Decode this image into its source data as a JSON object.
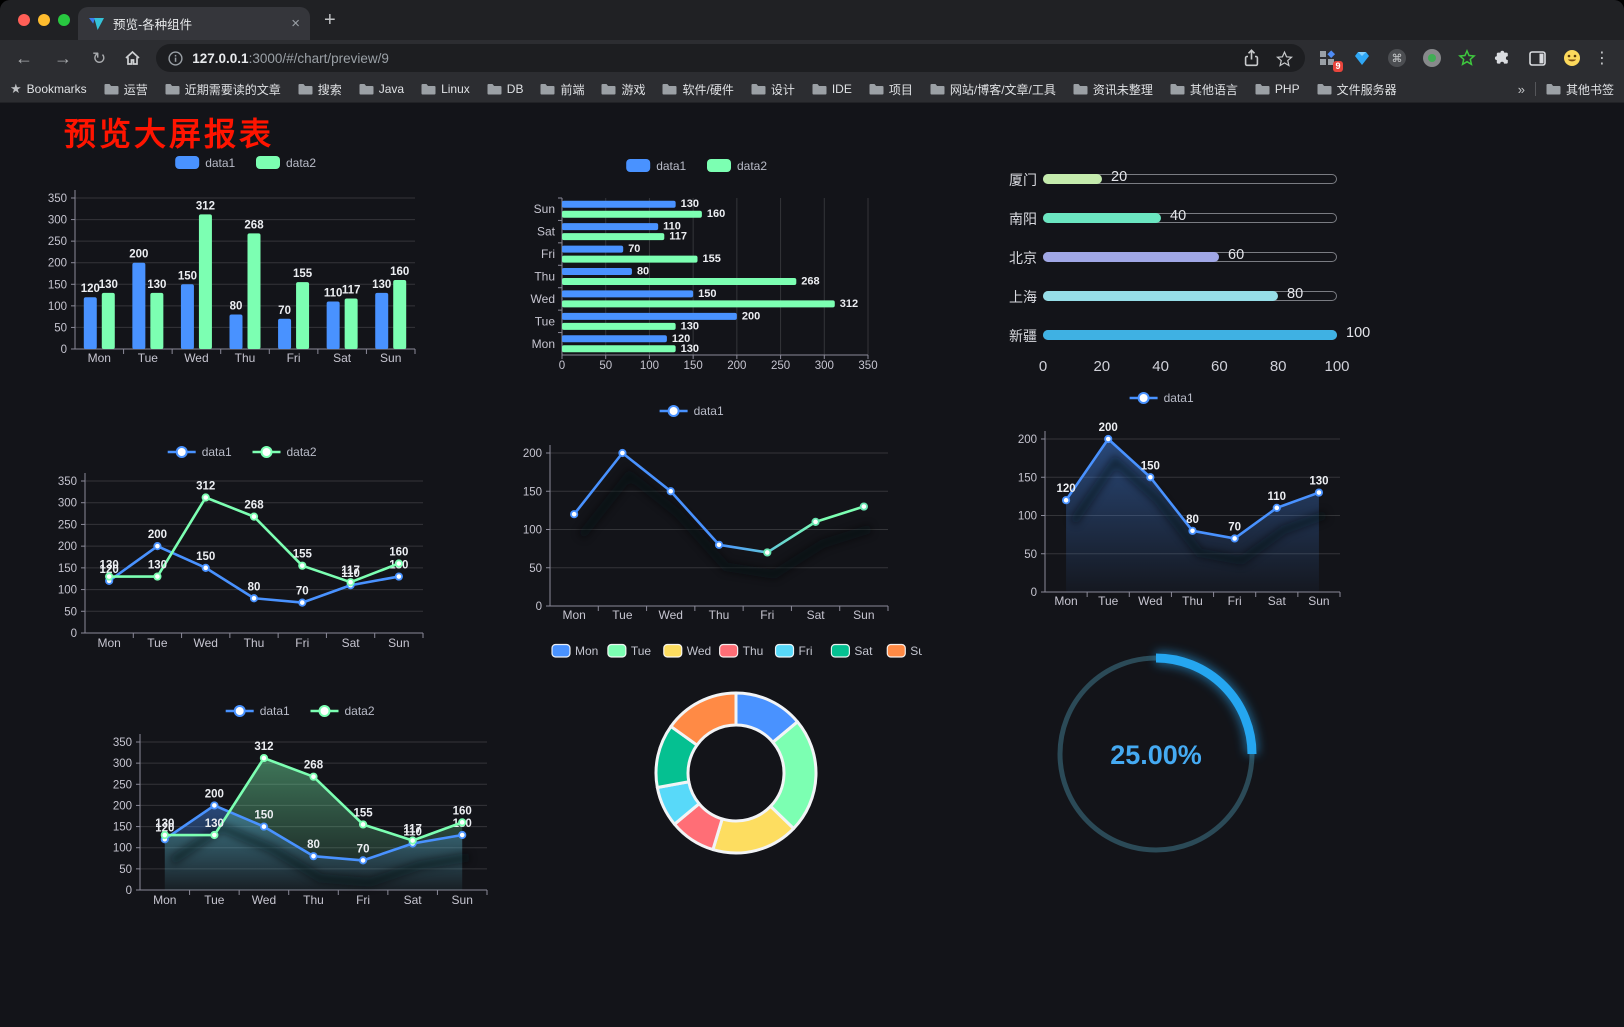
{
  "browser": {
    "tab": {
      "title": "预览-各种组件",
      "close_glyph": "×",
      "new_tab_glyph": "+"
    },
    "toolbar": {
      "url_host": "127.0.0.1",
      "url_rest": ":3000/#/chart/preview/9",
      "extension_badge": "9"
    },
    "bookmarks_bar": {
      "bookmarks_label": "Bookmarks",
      "folders": [
        "运营",
        "近期需要读的文章",
        "搜索",
        "Java",
        "Linux",
        "DB",
        "前端",
        "游戏",
        "软件/硬件",
        "设计",
        "IDE",
        "项目",
        "网站/博客/文章/工具",
        "资讯未整理",
        "其他语言",
        "PHP",
        "文件服务器"
      ],
      "overflow_chevron": "»",
      "other_bookmarks": "其他书签"
    }
  },
  "page": {
    "title": "预览大屏报表",
    "title_color": "#ff1400"
  },
  "chart_data": [
    {
      "id": "grouped-bar",
      "type": "bar",
      "categories": [
        "Mon",
        "Tue",
        "Wed",
        "Thu",
        "Fri",
        "Sat",
        "Sun"
      ],
      "series": [
        {
          "name": "data1",
          "color": "#4992ff",
          "values": [
            120,
            200,
            150,
            80,
            70,
            110,
            130
          ]
        },
        {
          "name": "data2",
          "color": "#7cffb2",
          "values": [
            130,
            130,
            312,
            268,
            155,
            117,
            160
          ]
        }
      ],
      "ylim": [
        0,
        350
      ],
      "yticks": [
        0,
        50,
        100,
        150,
        200,
        250,
        300,
        350
      ],
      "legend_position": "top",
      "grid": true,
      "labels": true
    },
    {
      "id": "horizontal-bar",
      "type": "bar-horizontal",
      "categories_top_to_bottom": [
        "Sun",
        "Sat",
        "Fri",
        "Thu",
        "Wed",
        "Tue",
        "Mon"
      ],
      "series": [
        {
          "name": "data1",
          "color": "#4992ff",
          "values": [
            130,
            110,
            70,
            80,
            150,
            200,
            120
          ]
        },
        {
          "name": "data2",
          "color": "#7cffb2",
          "values": [
            160,
            117,
            155,
            268,
            312,
            130,
            130
          ]
        }
      ],
      "xlim": [
        0,
        350
      ],
      "xticks": [
        0,
        50,
        100,
        150,
        200,
        250,
        300,
        350
      ],
      "legend_position": "top",
      "grid": true,
      "labels": true
    },
    {
      "id": "progress-bars",
      "type": "bar-horizontal-progress",
      "categories": [
        "厦门",
        "南阳",
        "北京",
        "上海",
        "新疆"
      ],
      "values": [
        20,
        40,
        60,
        80,
        100
      ],
      "colors": [
        "#c4ebad",
        "#6be6c1",
        "#a0a7e6",
        "#96dee8",
        "#3fb1e3"
      ],
      "xlim": [
        0,
        100
      ],
      "xticks": [
        0,
        20,
        40,
        60,
        80,
        100
      ],
      "labels": true
    },
    {
      "id": "line-two-series",
      "type": "line",
      "categories": [
        "Mon",
        "Tue",
        "Wed",
        "Thu",
        "Fri",
        "Sat",
        "Sun"
      ],
      "series": [
        {
          "name": "data1",
          "color": "#4992ff",
          "values": [
            120,
            200,
            150,
            80,
            70,
            110,
            130
          ]
        },
        {
          "name": "data2",
          "color": "#7cffb2",
          "values": [
            130,
            130,
            312,
            268,
            155,
            117,
            160
          ]
        }
      ],
      "ylim": [
        0,
        350
      ],
      "yticks": [
        0,
        50,
        100,
        150,
        200,
        250,
        300,
        350
      ],
      "legend_position": "top",
      "grid": true,
      "labels": true
    },
    {
      "id": "gradient-line",
      "type": "line",
      "categories": [
        "Mon",
        "Tue",
        "Wed",
        "Thu",
        "Fri",
        "Sat",
        "Sun"
      ],
      "series": [
        {
          "name": "data1",
          "color": "#4992ff",
          "color_end": "#7cffb2",
          "gradient": true,
          "shadow": true,
          "values": [
            120,
            200,
            150,
            80,
            70,
            110,
            130
          ]
        }
      ],
      "ylim": [
        0,
        200
      ],
      "yticks": [
        0,
        50,
        100,
        150,
        200
      ],
      "legend_position": "top",
      "grid": true,
      "labels": false
    },
    {
      "id": "area-single",
      "type": "area",
      "categories": [
        "Mon",
        "Tue",
        "Wed",
        "Thu",
        "Fri",
        "Sat",
        "Sun"
      ],
      "series": [
        {
          "name": "data1",
          "color": "#4992ff",
          "area": true,
          "shadow": true,
          "values": [
            120,
            200,
            150,
            80,
            70,
            110,
            130
          ]
        }
      ],
      "ylim": [
        0,
        200
      ],
      "yticks": [
        0,
        50,
        100,
        150,
        200
      ],
      "legend_position": "top",
      "grid": true,
      "labels": true
    },
    {
      "id": "area-two-series",
      "type": "area",
      "categories": [
        "Mon",
        "Tue",
        "Wed",
        "Thu",
        "Fri",
        "Sat",
        "Sun"
      ],
      "series": [
        {
          "name": "data1",
          "color": "#4992ff",
          "area": true,
          "shadow": true,
          "values": [
            120,
            200,
            150,
            80,
            70,
            110,
            130
          ]
        },
        {
          "name": "data2",
          "color": "#7cffb2",
          "area": true,
          "values": [
            130,
            130,
            312,
            268,
            155,
            117,
            160
          ]
        }
      ],
      "ylim": [
        0,
        350
      ],
      "yticks": [
        0,
        50,
        100,
        150,
        200,
        250,
        300,
        350
      ],
      "legend_position": "top",
      "grid": true,
      "labels": true
    },
    {
      "id": "donut",
      "type": "pie",
      "categories": [
        "Mon",
        "Tue",
        "Wed",
        "Thu",
        "Fri",
        "Sat",
        "Sun"
      ],
      "values": [
        120,
        200,
        150,
        80,
        70,
        110,
        130
      ],
      "colors": [
        "#4992ff",
        "#7cffb2",
        "#fddd60",
        "#ff6e76",
        "#58d9f9",
        "#05c091",
        "#ff8a45"
      ],
      "inner_radius_ratio": 0.6,
      "legend_position": "top"
    },
    {
      "id": "gauge",
      "type": "gauge",
      "value": 25,
      "max": 100,
      "label": "25.00%",
      "progress_color": "#25a6f0",
      "track_color": "#2b4a57",
      "text_color": "#45aaf2"
    }
  ]
}
